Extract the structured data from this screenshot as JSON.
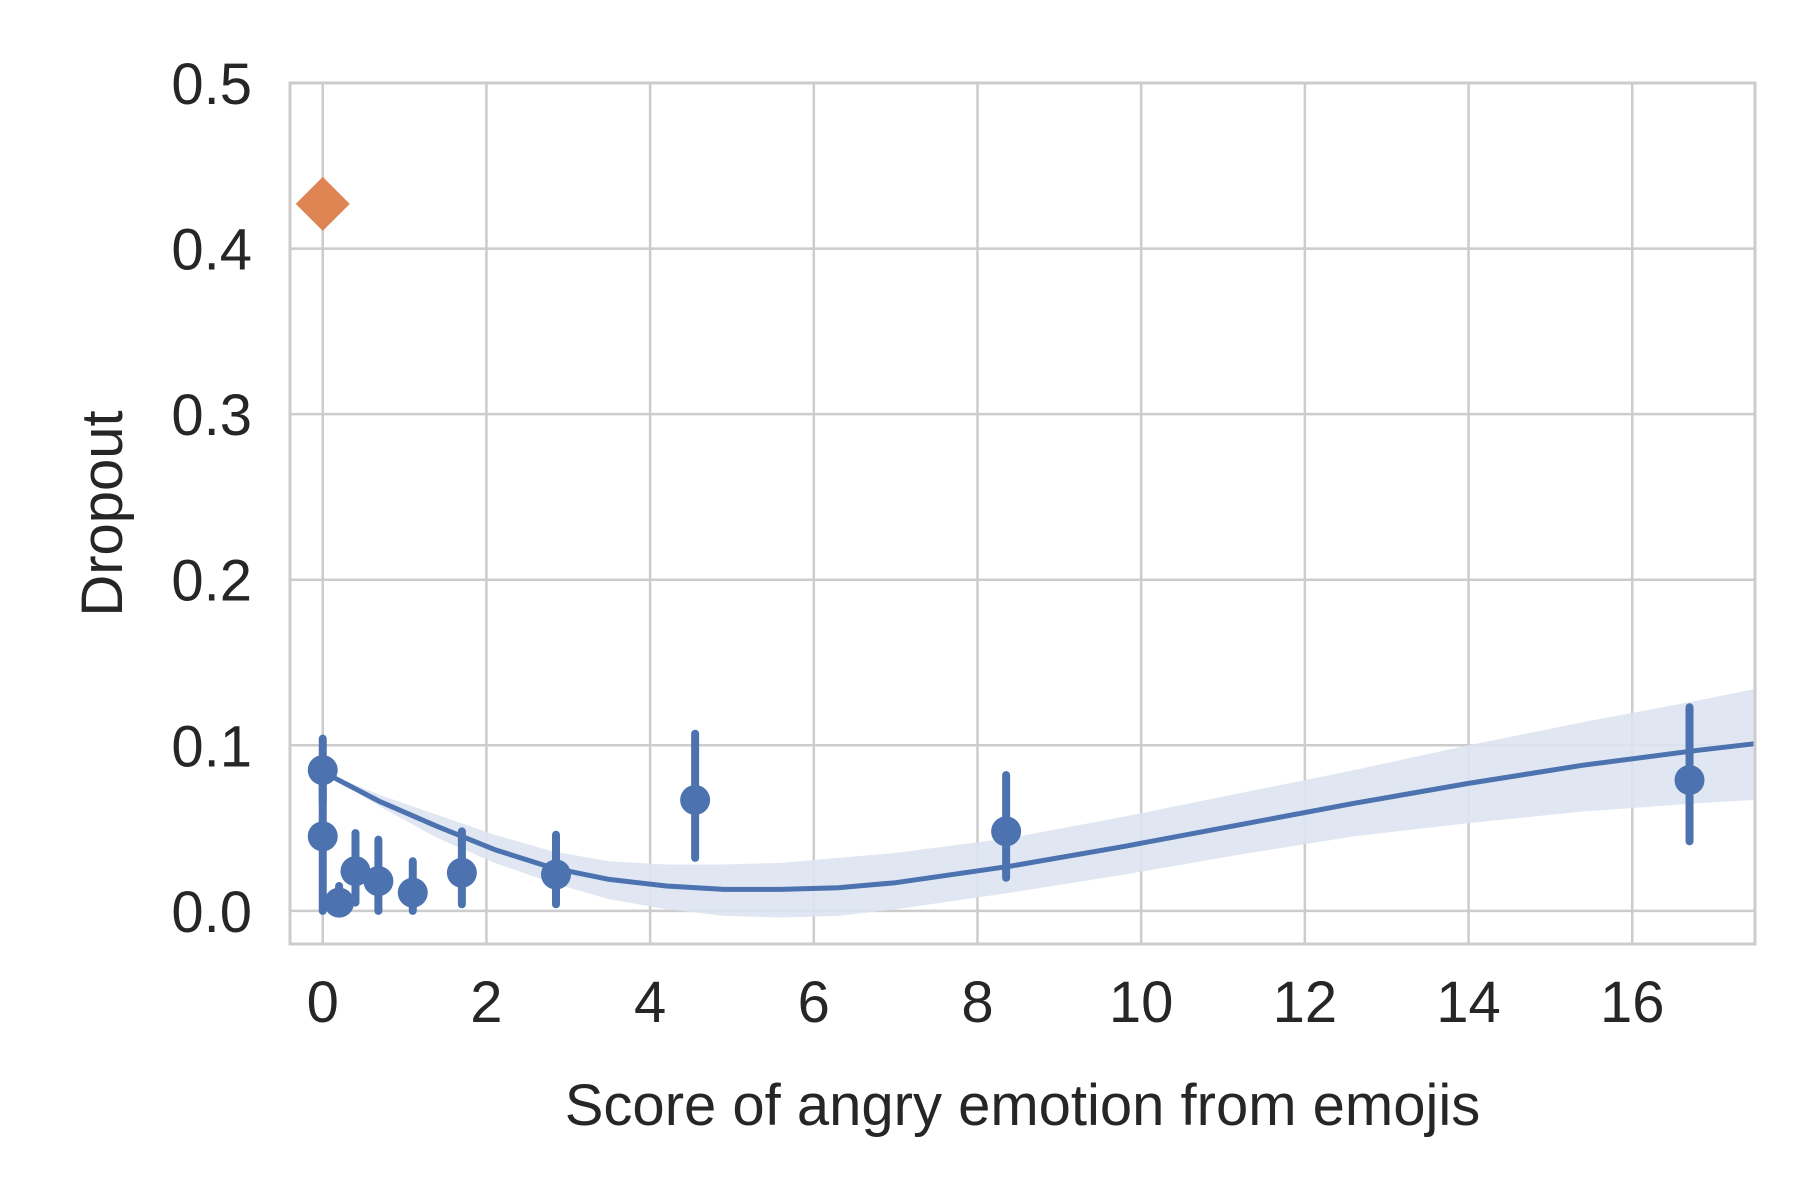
{
  "chart_data": {
    "type": "scatter",
    "title": "",
    "xlabel": "Score of angry emotion from emojis",
    "ylabel": "Dropout",
    "xlim": [
      -0.4,
      17.5
    ],
    "ylim": [
      -0.02,
      0.5
    ],
    "x_ticks": [
      0,
      2,
      4,
      6,
      8,
      10,
      12,
      14,
      16
    ],
    "x_tick_labels": [
      "0",
      "2",
      "4",
      "6",
      "8",
      "10",
      "12",
      "14",
      "16"
    ],
    "y_ticks": [
      0.0,
      0.1,
      0.2,
      0.3,
      0.4,
      0.5
    ],
    "y_tick_labels": [
      "0.0",
      "0.1",
      "0.2",
      "0.3",
      "0.4",
      "0.5"
    ],
    "grid": true,
    "colors": {
      "series": "#4c72b0",
      "band": "#dde4f1",
      "special": "#dd8452"
    },
    "binned_points": [
      {
        "x": 0.0,
        "y": 0.085,
        "lo": 0.065,
        "hi": 0.104
      },
      {
        "x": 0.0,
        "y": 0.045,
        "lo": 0.0,
        "hi": 0.09
      },
      {
        "x": 0.2,
        "y": 0.005,
        "lo": 0.0,
        "hi": 0.015
      },
      {
        "x": 0.4,
        "y": 0.024,
        "lo": 0.005,
        "hi": 0.047
      },
      {
        "x": 0.68,
        "y": 0.018,
        "lo": 0.0,
        "hi": 0.043
      },
      {
        "x": 1.1,
        "y": 0.011,
        "lo": 0.0,
        "hi": 0.03
      },
      {
        "x": 1.7,
        "y": 0.023,
        "lo": 0.004,
        "hi": 0.048
      },
      {
        "x": 2.85,
        "y": 0.022,
        "lo": 0.004,
        "hi": 0.046
      },
      {
        "x": 4.55,
        "y": 0.067,
        "lo": 0.032,
        "hi": 0.107
      },
      {
        "x": 8.35,
        "y": 0.048,
        "lo": 0.02,
        "hi": 0.082
      },
      {
        "x": 16.7,
        "y": 0.079,
        "lo": 0.042,
        "hi": 0.123
      }
    ],
    "special_point": {
      "x": 0.0,
      "y": 0.427
    },
    "fit_line": {
      "x": [
        0.0,
        0.7,
        1.4,
        2.1,
        2.8,
        3.5,
        4.2,
        4.9,
        5.6,
        6.3,
        7.0,
        8.4,
        9.8,
        11.2,
        12.6,
        14.0,
        15.4,
        16.8,
        17.5
      ],
      "y": [
        0.084,
        0.066,
        0.051,
        0.037,
        0.026,
        0.019,
        0.015,
        0.013,
        0.013,
        0.014,
        0.017,
        0.027,
        0.039,
        0.052,
        0.065,
        0.077,
        0.088,
        0.097,
        0.101
      ],
      "lo": [
        0.084,
        0.063,
        0.044,
        0.029,
        0.017,
        0.007,
        0.001,
        -0.003,
        -0.004,
        -0.003,
        0.001,
        0.011,
        0.022,
        0.034,
        0.045,
        0.053,
        0.06,
        0.065,
        0.067
      ],
      "hi": [
        0.084,
        0.07,
        0.058,
        0.046,
        0.036,
        0.03,
        0.028,
        0.028,
        0.029,
        0.032,
        0.035,
        0.044,
        0.057,
        0.071,
        0.085,
        0.1,
        0.114,
        0.127,
        0.134
      ]
    }
  }
}
